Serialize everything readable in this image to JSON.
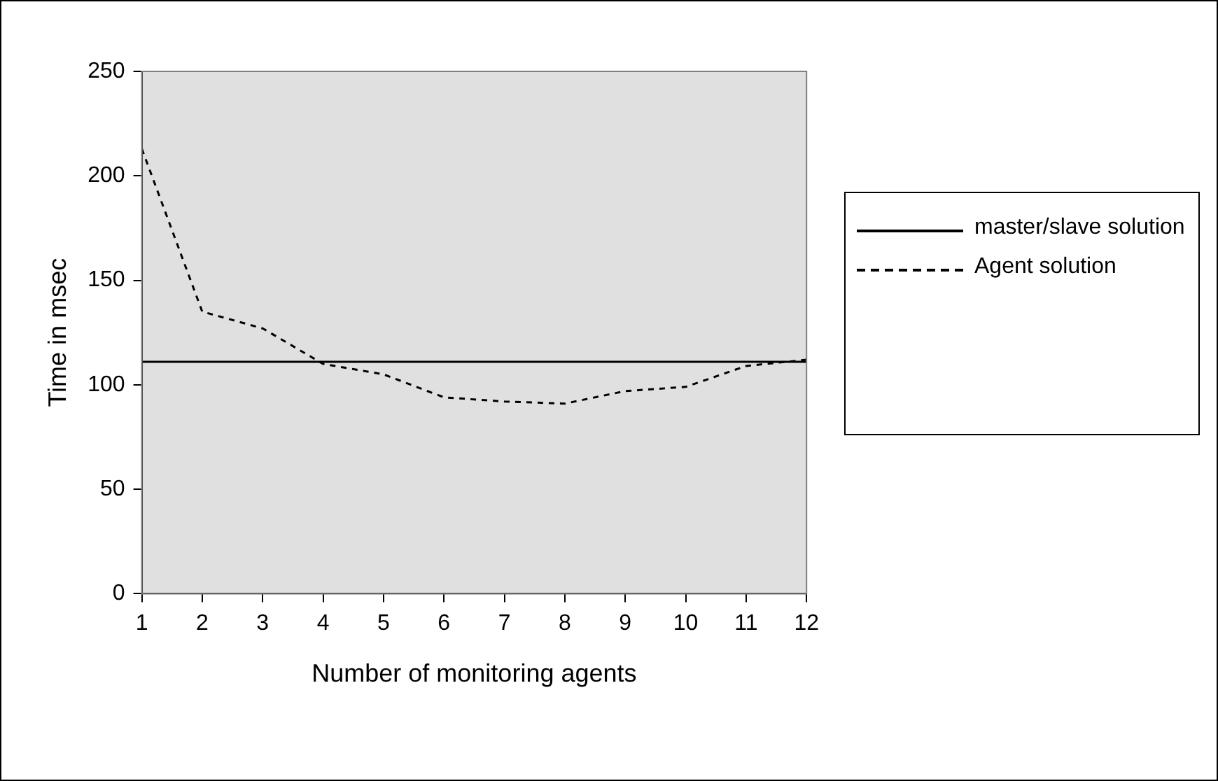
{
  "chart_data": {
    "type": "line",
    "xlabel": "Number of monitoring agents",
    "ylabel": "Time in msec",
    "x": [
      1,
      2,
      3,
      4,
      5,
      6,
      7,
      8,
      9,
      10,
      11,
      12
    ],
    "xlim": [
      1,
      12
    ],
    "xticks": [
      1,
      2,
      3,
      4,
      5,
      6,
      7,
      8,
      9,
      10,
      11,
      12
    ],
    "ylim": [
      0,
      250
    ],
    "yticks": [
      0,
      50,
      100,
      150,
      200,
      250
    ],
    "grid": false,
    "legend": "right",
    "marker": "none",
    "series": [
      {
        "name": "master/slave solution",
        "color": "#000000",
        "line_style": "solid",
        "values": [
          111,
          111,
          111,
          111,
          111,
          111,
          111,
          111,
          111,
          111,
          111,
          111
        ]
      },
      {
        "name": "Agent solution",
        "color": "#000000",
        "line_style": "dashed",
        "values": [
          213,
          135,
          127,
          110,
          105,
          94,
          92,
          91,
          97,
          99,
          109,
          112
        ]
      }
    ]
  }
}
